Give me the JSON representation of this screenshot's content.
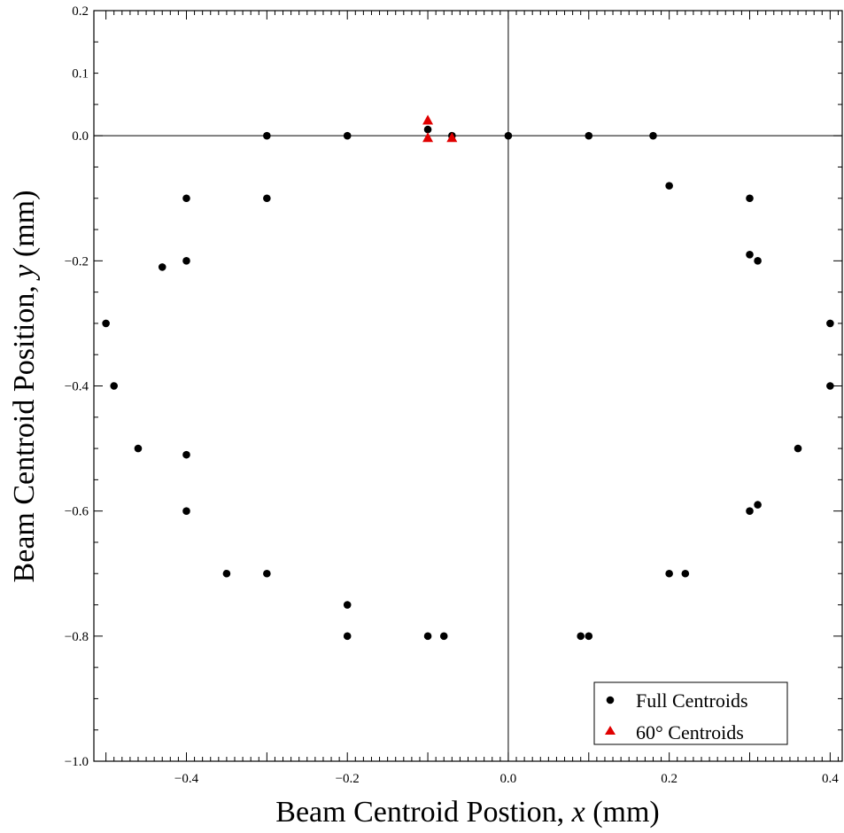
{
  "chart_data": {
    "type": "scatter",
    "xlabel": {
      "prefix": "Beam Centroid Postion, ",
      "var": "x",
      "suffix": " (mm)"
    },
    "ylabel": {
      "prefix": "Beam Centroid Position, ",
      "var": "y",
      "suffix": " (mm)"
    },
    "xlim": [
      -0.515,
      0.415
    ],
    "ylim": [
      -1.0,
      0.2
    ],
    "x_ticks": [
      -0.4,
      -0.2,
      0.0,
      0.2,
      0.4
    ],
    "x_tick_labels": [
      "−0.4",
      "−0.2",
      "0.0",
      "0.2",
      "0.4"
    ],
    "y_ticks": [
      0.2,
      0.1,
      0.0,
      -0.2,
      -0.4,
      -0.6,
      -0.8,
      -1.0
    ],
    "y_tick_labels": [
      "0.2",
      "0.1",
      "0.0",
      "−0.2",
      "−0.4",
      "−0.6",
      "−0.8",
      "−1.0"
    ],
    "reference_lines": {
      "x": 0,
      "y": 0
    },
    "grid": false,
    "legend_position": "bottom-right",
    "series": [
      {
        "name": "Full Centroids",
        "marker": "circle",
        "color": "#000000",
        "points": [
          [
            -0.5,
            -0.3
          ],
          [
            -0.49,
            -0.4
          ],
          [
            -0.46,
            -0.5
          ],
          [
            -0.43,
            -0.21
          ],
          [
            -0.4,
            -0.1
          ],
          [
            -0.4,
            -0.2
          ],
          [
            -0.4,
            -0.51
          ],
          [
            -0.4,
            -0.6
          ],
          [
            -0.35,
            -0.7
          ],
          [
            -0.3,
            0.0
          ],
          [
            -0.3,
            -0.1
          ],
          [
            -0.3,
            -0.7
          ],
          [
            -0.2,
            0.0
          ],
          [
            -0.2,
            -0.75
          ],
          [
            -0.2,
            -0.8
          ],
          [
            -0.1,
            0.01
          ],
          [
            -0.1,
            -0.8
          ],
          [
            -0.08,
            -0.8
          ],
          [
            -0.07,
            0.0
          ],
          [
            0.0,
            0.0
          ],
          [
            0.09,
            -0.8
          ],
          [
            0.1,
            0.0
          ],
          [
            0.1,
            -0.8
          ],
          [
            0.18,
            0.0
          ],
          [
            0.2,
            -0.08
          ],
          [
            0.2,
            -0.7
          ],
          [
            0.22,
            -0.7
          ],
          [
            0.3,
            -0.1
          ],
          [
            0.3,
            -0.19
          ],
          [
            0.31,
            -0.2
          ],
          [
            0.3,
            -0.6
          ],
          [
            0.31,
            -0.59
          ],
          [
            0.36,
            -0.5
          ],
          [
            0.4,
            -0.3
          ],
          [
            0.4,
            -0.4
          ]
        ]
      },
      {
        "name": "60° Centroids",
        "marker": "triangle",
        "color": "#e00000",
        "points": [
          [
            -0.1,
            0.025
          ],
          [
            -0.1,
            -0.003
          ],
          [
            -0.07,
            -0.003
          ]
        ]
      }
    ]
  }
}
